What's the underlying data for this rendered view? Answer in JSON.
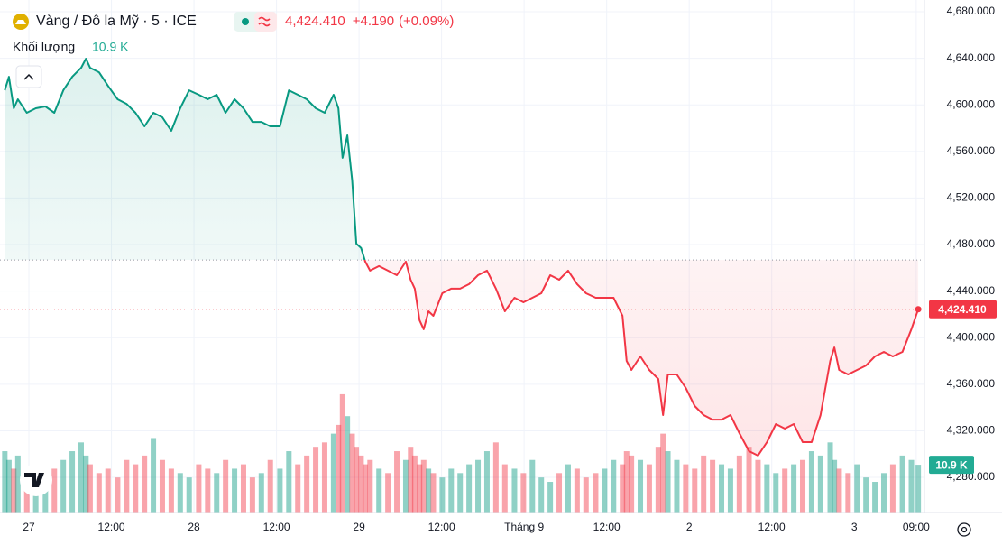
{
  "chart_data": {
    "type": "baseline",
    "title": "Vàng / Đô la Mỹ · 5 · ICE",
    "price_label": "4,424.410",
    "change_label": "+4.190",
    "change_pct_label": "(+0.09%)",
    "volume_title": "Khối lượng",
    "volume_label": "10.9 K",
    "up_color": "#089981",
    "down_color": "#f23645",
    "baseline": 4466.8,
    "grid": true,
    "xlim": [
      -4.2,
      130.2
    ],
    "ylim": [
      4249.8,
      4690.1
    ],
    "volume_ylim": [
      0,
      117
    ],
    "xticks": [
      {
        "value": 0,
        "label": "27"
      },
      {
        "value": 12,
        "label": "12:00"
      },
      {
        "value": 24,
        "label": "28"
      },
      {
        "value": 36,
        "label": "12:00"
      },
      {
        "value": 48,
        "label": "29"
      },
      {
        "value": 60,
        "label": "12:00"
      },
      {
        "value": 72,
        "label": "Tháng 9"
      },
      {
        "value": 84,
        "label": "12:00"
      },
      {
        "value": 96,
        "label": "2"
      },
      {
        "value": 108,
        "label": "12:00"
      },
      {
        "value": 120,
        "label": "3"
      },
      {
        "value": 129,
        "label": "09:00"
      }
    ],
    "yticks": [
      {
        "value": 4280,
        "label": "4,280.000"
      },
      {
        "value": 4320,
        "label": "4,320.000"
      },
      {
        "value": 4360,
        "label": "4,360.000"
      },
      {
        "value": 4400,
        "label": "4,400.000"
      },
      {
        "value": 4440,
        "label": "4,440.000"
      },
      {
        "value": 4480,
        "label": "4,480.000"
      },
      {
        "value": 4520,
        "label": "4,520.000"
      },
      {
        "value": 4560,
        "label": "4,560.000"
      },
      {
        "value": 4600,
        "label": "4,600.000"
      },
      {
        "value": 4640,
        "label": "4,640.000"
      },
      {
        "value": 4680,
        "label": "4,680.000"
      }
    ],
    "x": [
      -3.5,
      -2.9,
      -2.2,
      -1.6,
      -0.3,
      1.0,
      2.4,
      3.7,
      5.0,
      6.3,
      7.6,
      8.3,
      8.9,
      10.2,
      11.5,
      12.9,
      14.2,
      15.5,
      16.8,
      18.1,
      19.4,
      20.7,
      22.0,
      23.3,
      24.7,
      26.0,
      27.3,
      28.6,
      29.9,
      31.2,
      32.5,
      33.8,
      35.1,
      36.5,
      37.8,
      39.1,
      40.4,
      41.7,
      43.0,
      44.3,
      45.0,
      45.6,
      46.3,
      47.0,
      47.6,
      48.3,
      48.9,
      49.6,
      50.9,
      52.2,
      53.5,
      54.8,
      55.5,
      56.1,
      56.8,
      57.4,
      58.1,
      58.8,
      60.1,
      61.4,
      62.7,
      64.0,
      65.3,
      66.6,
      67.9,
      69.2,
      70.6,
      71.9,
      73.2,
      74.5,
      75.8,
      77.1,
      78.4,
      79.7,
      81.0,
      82.4,
      83.7,
      85.0,
      86.3,
      86.9,
      87.6,
      88.9,
      90.2,
      91.5,
      92.2,
      92.9,
      94.2,
      95.5,
      96.8,
      98.1,
      99.4,
      100.7,
      102.0,
      103.3,
      104.7,
      106.0,
      107.3,
      108.6,
      109.9,
      111.2,
      112.5,
      113.8,
      115.1,
      116.5,
      117.1,
      117.8,
      119.1,
      120.4,
      121.7,
      123.0,
      124.3,
      125.6,
      127.0,
      128.3,
      129.3
    ],
    "series": [
      {
        "name": "Vàng / Đô la Mỹ",
        "values": [
          4612.5,
          4624.1,
          4597.1,
          4604.8,
          4593.2,
          4597.1,
          4598.6,
          4593.2,
          4612.5,
          4624.1,
          4631.9,
          4639.7,
          4631.9,
          4628.0,
          4616.4,
          4604.8,
          4600.9,
          4593.2,
          4581.6,
          4593.2,
          4589.3,
          4577.7,
          4597.1,
          4612.5,
          4608.7,
          4604.8,
          4608.7,
          4593.2,
          4604.8,
          4597.1,
          4585.4,
          4585.4,
          4581.6,
          4581.6,
          4612.5,
          4608.7,
          4604.8,
          4597.1,
          4593.2,
          4608.7,
          4597.1,
          4554.5,
          4573.8,
          4535.1,
          4480.8,
          4477.0,
          4465.4,
          4457.6,
          4461.5,
          4457.6,
          4453.7,
          4465.4,
          4449.8,
          4442.1,
          4415.0,
          4407.2,
          4422.7,
          4418.8,
          4438.2,
          4442.1,
          4442.1,
          4446.0,
          4453.7,
          4457.6,
          4442.1,
          4422.7,
          4434.3,
          4430.4,
          4434.3,
          4438.2,
          4453.7,
          4449.8,
          4457.6,
          4446.0,
          4438.2,
          4434.3,
          4434.3,
          4434.3,
          4418.8,
          4380.0,
          4372.3,
          4383.9,
          4372.3,
          4364.5,
          4333.5,
          4368.4,
          4368.4,
          4356.8,
          4341.3,
          4333.5,
          4329.6,
          4329.6,
          4333.5,
          4318.0,
          4302.5,
          4298.7,
          4310.3,
          4325.8,
          4321.9,
          4325.8,
          4310.3,
          4310.3,
          4333.5,
          4380.0,
          4391.6,
          4372.3,
          4368.4,
          4372.3,
          4376.1,
          4383.9,
          4387.8,
          4383.9,
          4387.8,
          4407.2,
          4424.41
        ]
      },
      {
        "name": "Khối lượng",
        "values": [
          14,
          12,
          10,
          13,
          9,
          11,
          8,
          10,
          12,
          14,
          16,
          13,
          11,
          9,
          10,
          8,
          12,
          11,
          13,
          17,
          12,
          10,
          9,
          8,
          11,
          10,
          9,
          12,
          10,
          11,
          8,
          9,
          12,
          10,
          14,
          11,
          13,
          15,
          16,
          18,
          20,
          27,
          22,
          18,
          15,
          13,
          11,
          12,
          10,
          9,
          14,
          12,
          15,
          13,
          11,
          12,
          10,
          9,
          8,
          10,
          9,
          11,
          12,
          14,
          16,
          11,
          10,
          9,
          12,
          8,
          7,
          9,
          11,
          10,
          8,
          9,
          10,
          12,
          11,
          14,
          13,
          12,
          11,
          15,
          18,
          14,
          12,
          11,
          10,
          13,
          12,
          11,
          10,
          13,
          15,
          12,
          11,
          9,
          10,
          11,
          12,
          14,
          13,
          16,
          12,
          10,
          9,
          11,
          8,
          7,
          9,
          11,
          13,
          12,
          10.9
        ]
      }
    ]
  }
}
